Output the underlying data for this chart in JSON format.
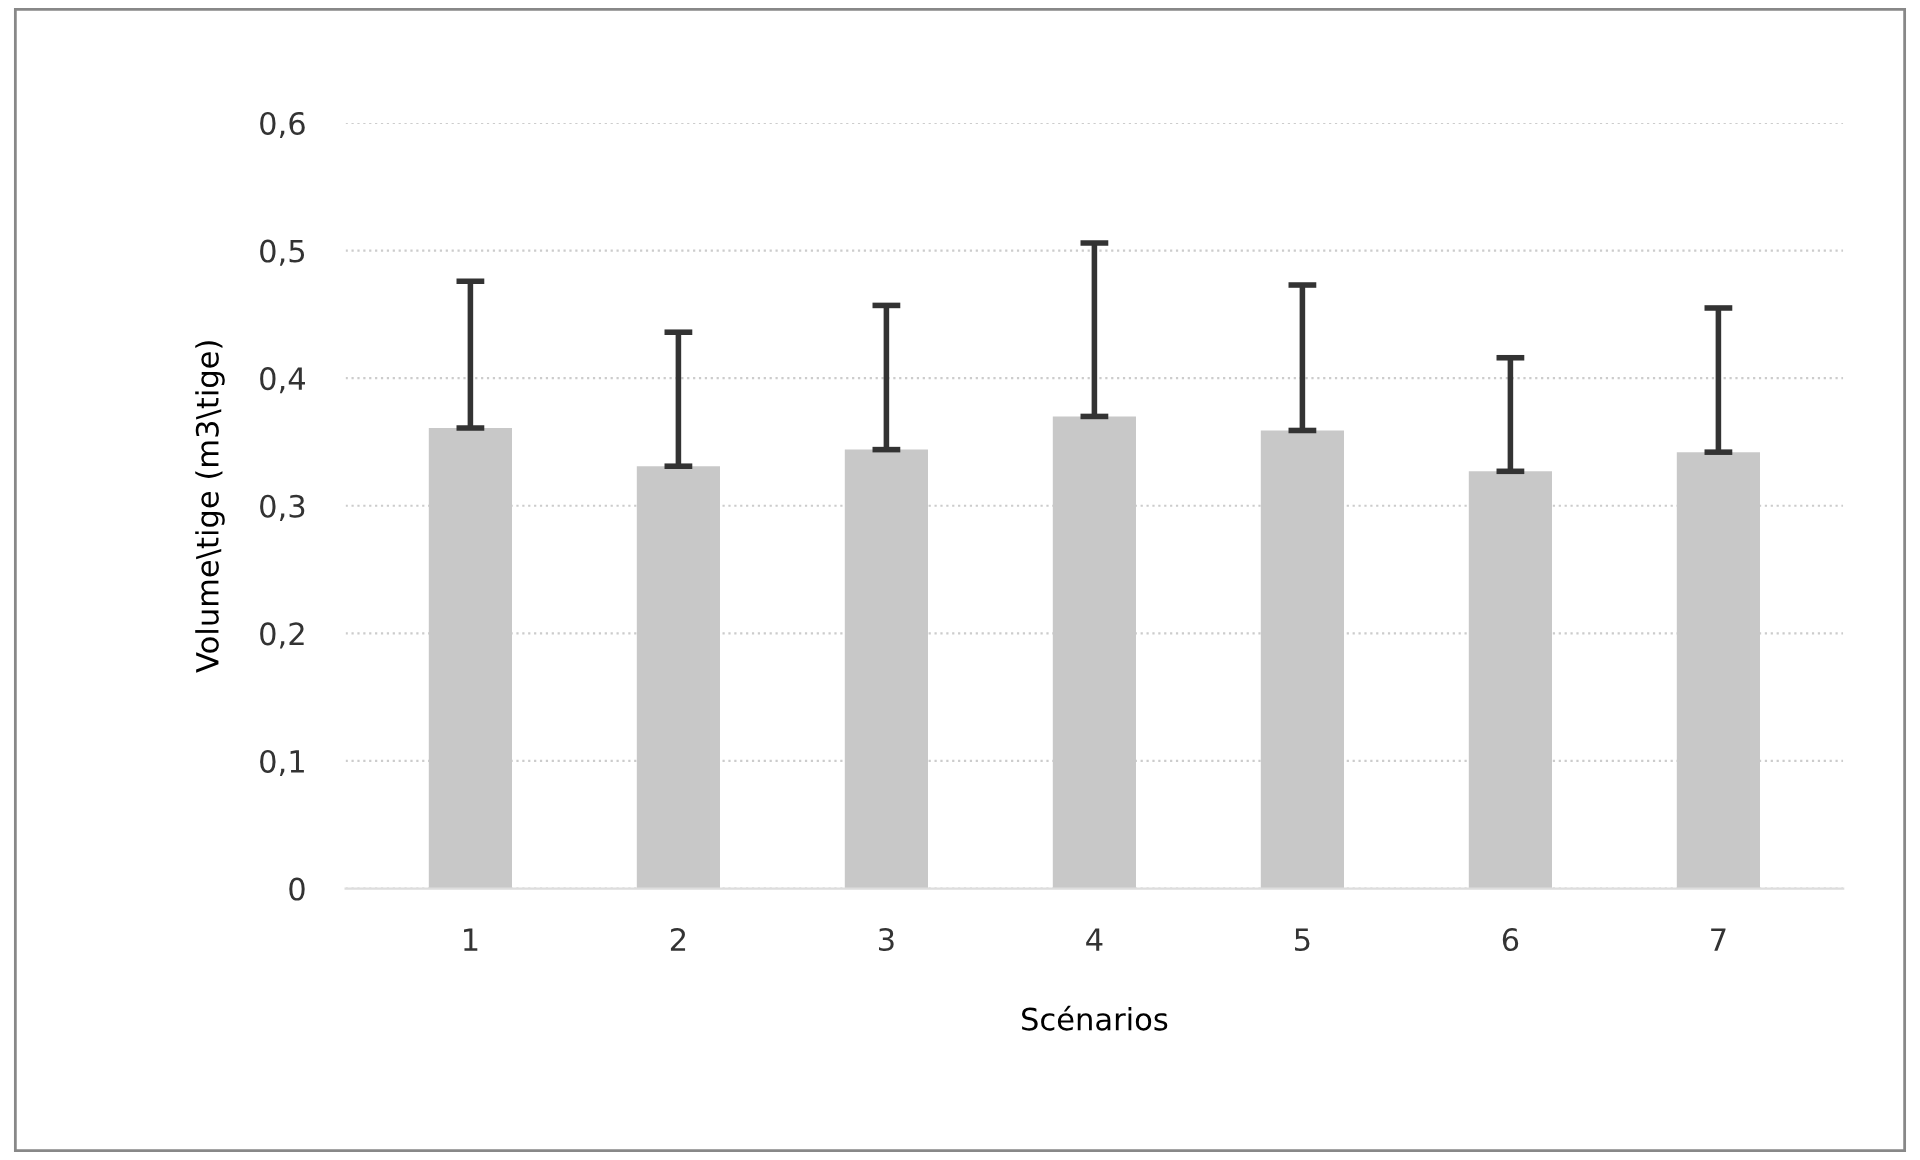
{
  "chart_data": {
    "type": "bar",
    "xlabel": "Scénarios",
    "ylabel": "Volume\\tige (m3\\tige)",
    "categories": [
      "1",
      "2",
      "3",
      "4",
      "5",
      "6",
      "7"
    ],
    "values": [
      0.361,
      0.331,
      0.344,
      0.37,
      0.359,
      0.327,
      0.342
    ],
    "errors": [
      [
        0.361,
        0.476
      ],
      [
        0.331,
        0.436
      ],
      [
        0.344,
        0.457
      ],
      [
        0.37,
        0.506
      ],
      [
        0.359,
        0.473
      ],
      [
        0.327,
        0.416
      ],
      [
        0.342,
        0.455
      ]
    ],
    "color": "#c8c8c8",
    "ylim": [
      0,
      0.6
    ],
    "yticks": [
      {
        "value": 0,
        "label": "0"
      },
      {
        "value": 0.1,
        "label": "0,1"
      },
      {
        "value": 0.2,
        "label": "0,2"
      },
      {
        "value": 0.3,
        "label": "0,3"
      },
      {
        "value": 0.4,
        "label": "0,4"
      },
      {
        "value": 0.5,
        "label": "0,5"
      },
      {
        "value": 0.6,
        "label": "0,6"
      }
    ],
    "grid": "y"
  }
}
